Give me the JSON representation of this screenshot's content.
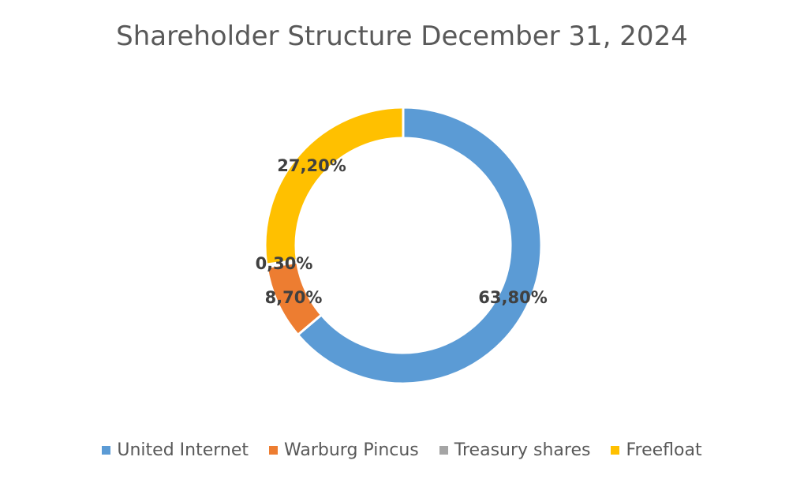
{
  "chart_data": {
    "type": "pie",
    "variant": "donut",
    "title": "Shareholder Structure December 31, 2024",
    "categories": [
      "United Internet",
      "Warburg Pincus",
      "Treasury shares",
      "Freefloat"
    ],
    "values": [
      63.8,
      8.7,
      0.3,
      27.2
    ],
    "labels": [
      "63,80%",
      "8,70%",
      "0,30%",
      "27,20%"
    ],
    "colors": [
      "#5B9BD5",
      "#ED7D31",
      "#A5A5A5",
      "#FFC000"
    ],
    "legend_position": "bottom"
  }
}
